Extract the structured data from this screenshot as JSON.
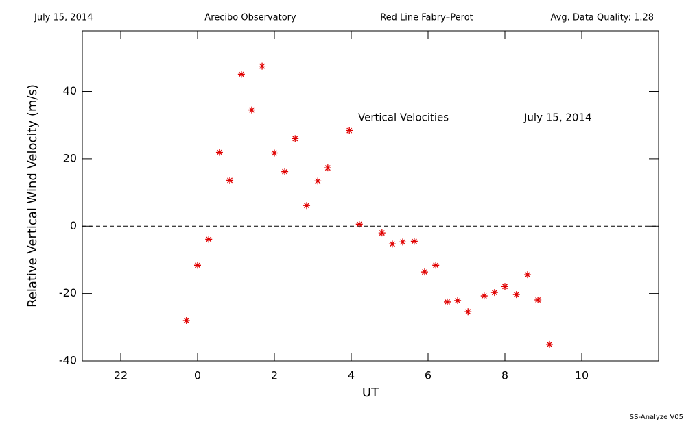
{
  "chart_data": {
    "type": "scatter",
    "header": [
      "July 15, 2014",
      "Arecibo Observatory",
      "Red Line Fabry–Perot",
      "Avg. Data Quality: 1.28"
    ],
    "annotations": [
      "Vertical Velocities",
      "July 15, 2014"
    ],
    "footer": "SS-Analyze V05",
    "xlabel": "UT",
    "ylabel": "Relative Vertical Wind Velocity (m/s)",
    "xlim": [
      -3,
      12
    ],
    "ylim": [
      -40,
      58
    ],
    "xticks": [
      {
        "value": -2,
        "label": "22"
      },
      0,
      2,
      4,
      6,
      8,
      10
    ],
    "yticks": [
      -40,
      -20,
      0,
      20,
      40
    ],
    "reference_line": 0,
    "series": [
      {
        "name": "Vertical Velocities",
        "color": "#e00000",
        "x": [
          -0.29,
          0.0,
          0.29,
          0.57,
          0.84,
          1.14,
          1.41,
          1.68,
          2.0,
          2.27,
          2.54,
          2.84,
          3.13,
          3.39,
          3.95,
          4.21,
          4.8,
          5.07,
          5.34,
          5.64,
          5.91,
          6.2,
          6.5,
          6.77,
          7.04,
          7.46,
          7.73,
          8.0,
          8.3,
          8.59,
          8.86,
          9.16
        ],
        "values": [
          -28.0,
          -11.6,
          -3.9,
          21.9,
          13.6,
          45.1,
          34.5,
          47.5,
          21.7,
          16.2,
          26.0,
          6.1,
          13.4,
          17.3,
          28.4,
          0.6,
          -2.0,
          -5.3,
          -4.7,
          -4.5,
          -13.6,
          -11.6,
          -22.5,
          -22.1,
          -25.4,
          -20.7,
          -19.7,
          -17.9,
          -20.3,
          -14.4,
          -21.9,
          -35.1
        ]
      }
    ]
  }
}
